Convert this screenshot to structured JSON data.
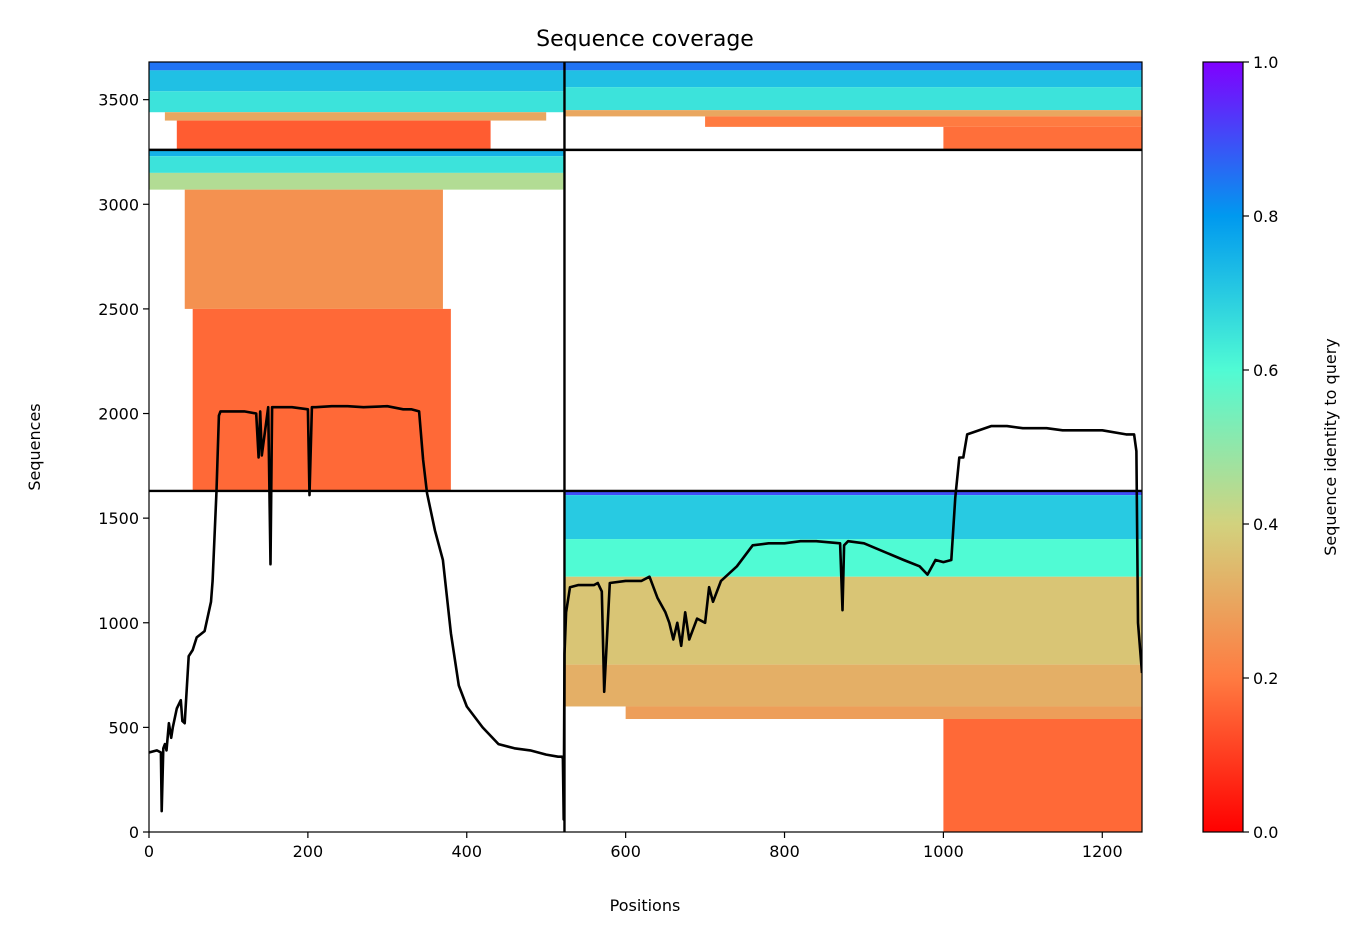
{
  "chart_data": {
    "type": "heatmap",
    "title": "Sequence coverage",
    "xlabel": "Positions",
    "ylabel": "Sequences",
    "xlim": [
      0,
      1250
    ],
    "ylim": [
      0,
      3680
    ],
    "xticks": [
      0,
      200,
      400,
      600,
      800,
      1000,
      1200
    ],
    "yticks": [
      0,
      500,
      1000,
      1500,
      2000,
      2500,
      3000,
      3500
    ],
    "colorbar": {
      "label": "Sequence identity to query",
      "colormap": "rainbow_r",
      "range": [
        0.0,
        1.0
      ],
      "ticks": [
        "0.0",
        "0.2",
        "0.4",
        "0.6",
        "0.8",
        "1.0"
      ],
      "colors": [
        "#ff0000",
        "#ff7b41",
        "#d2d27e",
        "#50fbd4",
        "#0099ef",
        "#8000ff"
      ]
    },
    "separators": {
      "x": [
        523
      ],
      "y": [
        1630,
        3260
      ]
    },
    "blocks": [
      {
        "name": "chain-A-block-1",
        "x": [
          0,
          523
        ],
        "y": [
          3260,
          3680
        ],
        "bands": [
          {
            "y": [
              3640,
              3680
            ],
            "x": [
              0,
              523
            ],
            "identity": 0.85
          },
          {
            "y": [
              3540,
              3640
            ],
            "x": [
              0,
              523
            ],
            "identity": 0.72
          },
          {
            "y": [
              3440,
              3540
            ],
            "x": [
              0,
              523
            ],
            "identity": 0.65
          },
          {
            "y": [
              3400,
              3440
            ],
            "x": [
              20,
              500
            ],
            "identity": 0.3
          },
          {
            "y": [
              3260,
              3400
            ],
            "x": [
              35,
              430
            ],
            "identity": 0.15
          }
        ]
      },
      {
        "name": "chain-B-block-1",
        "x": [
          523,
          1250
        ],
        "y": [
          3260,
          3680
        ],
        "bands": [
          {
            "y": [
              3640,
              3680
            ],
            "x": [
              523,
              1250
            ],
            "identity": 0.85
          },
          {
            "y": [
              3560,
              3640
            ],
            "x": [
              523,
              1250
            ],
            "identity": 0.72
          },
          {
            "y": [
              3450,
              3560
            ],
            "x": [
              523,
              1250
            ],
            "identity": 0.65
          },
          {
            "y": [
              3420,
              3450
            ],
            "x": [
              523,
              1250
            ],
            "identity": 0.3
          },
          {
            "y": [
              3370,
              3420
            ],
            "x": [
              700,
              1250
            ],
            "identity": 0.2
          },
          {
            "y": [
              3260,
              3370
            ],
            "x": [
              1000,
              1250
            ],
            "identity": 0.18
          }
        ]
      },
      {
        "name": "chain-A-block-2",
        "x": [
          0,
          523
        ],
        "y": [
          1630,
          3260
        ],
        "bands": [
          {
            "y": [
              3230,
              3260
            ],
            "x": [
              0,
              523
            ],
            "identity": 0.75
          },
          {
            "y": [
              3150,
              3230
            ],
            "x": [
              0,
              523
            ],
            "identity": 0.65
          },
          {
            "y": [
              3070,
              3150
            ],
            "x": [
              0,
              523
            ],
            "identity": 0.45
          },
          {
            "y": [
              2500,
              3070
            ],
            "x": [
              45,
              370
            ],
            "identity": 0.25
          },
          {
            "y": [
              1630,
              2500
            ],
            "x": [
              55,
              380
            ],
            "identity": 0.17
          }
        ]
      },
      {
        "name": "chain-B-block-2",
        "x": [
          523,
          1250
        ],
        "y": [
          0,
          1630
        ],
        "bands": [
          {
            "y": [
              1610,
              1630
            ],
            "x": [
              523,
              1250
            ],
            "identity": 0.9
          },
          {
            "y": [
              1400,
              1610
            ],
            "x": [
              523,
              1250
            ],
            "identity": 0.7
          },
          {
            "y": [
              1220,
              1400
            ],
            "x": [
              523,
              1250
            ],
            "identity": 0.6
          },
          {
            "y": [
              800,
              1220
            ],
            "x": [
              523,
              1250
            ],
            "identity": 0.37
          },
          {
            "y": [
              600,
              800
            ],
            "x": [
              523,
              1250
            ],
            "identity": 0.32
          },
          {
            "y": [
              540,
              600
            ],
            "x": [
              600,
              1250
            ],
            "identity": 0.28
          },
          {
            "y": [
              0,
              540
            ],
            "x": [
              1000,
              1250
            ],
            "identity": 0.17
          }
        ]
      }
    ],
    "coverage_line": {
      "x": [
        0,
        10,
        15,
        16,
        18,
        20,
        22,
        25,
        28,
        30,
        35,
        40,
        42,
        45,
        50,
        55,
        60,
        70,
        78,
        80,
        85,
        88,
        90,
        100,
        120,
        135,
        138,
        140,
        142,
        150,
        153,
        155,
        160,
        180,
        200,
        202,
        205,
        210,
        230,
        250,
        270,
        300,
        320,
        330,
        340,
        345,
        350,
        360,
        370,
        380,
        390,
        400,
        420,
        440,
        460,
        480,
        500,
        515,
        520,
        521,
        522,
        523,
        525,
        530,
        540,
        560,
        565,
        570,
        573,
        580,
        600,
        620,
        630,
        640,
        650,
        655,
        660,
        665,
        670,
        675,
        680,
        690,
        700,
        705,
        710,
        720,
        740,
        760,
        780,
        800,
        820,
        840,
        870,
        873,
        875,
        880,
        900,
        950,
        970,
        980,
        990,
        1000,
        1010,
        1015,
        1020,
        1025,
        1030,
        1060,
        1080,
        1100,
        1130,
        1150,
        1200,
        1230,
        1240,
        1243,
        1245,
        1250
      ],
      "y": [
        380,
        390,
        380,
        100,
        400,
        420,
        390,
        520,
        450,
        500,
        590,
        630,
        530,
        520,
        840,
        870,
        930,
        960,
        1100,
        1200,
        1630,
        1990,
        2010,
        2010,
        2010,
        2000,
        1790,
        2010,
        1800,
        2030,
        1280,
        2030,
        2030,
        2030,
        2020,
        1610,
        2030,
        2030,
        2035,
        2035,
        2030,
        2035,
        2020,
        2020,
        2010,
        1780,
        1620,
        1440,
        1300,
        950,
        700,
        600,
        500,
        420,
        400,
        390,
        370,
        360,
        360,
        350,
        60,
        850,
        1050,
        1170,
        1180,
        1180,
        1190,
        1150,
        670,
        1190,
        1200,
        1200,
        1220,
        1120,
        1050,
        1000,
        920,
        1000,
        890,
        1050,
        920,
        1020,
        1000,
        1170,
        1100,
        1200,
        1270,
        1370,
        1380,
        1380,
        1390,
        1390,
        1380,
        1060,
        1370,
        1390,
        1380,
        1300,
        1270,
        1230,
        1300,
        1290,
        1300,
        1600,
        1790,
        1790,
        1900,
        1940,
        1940,
        1930,
        1930,
        1920,
        1920,
        1900,
        1900,
        1820,
        1000,
        760
      ]
    }
  }
}
